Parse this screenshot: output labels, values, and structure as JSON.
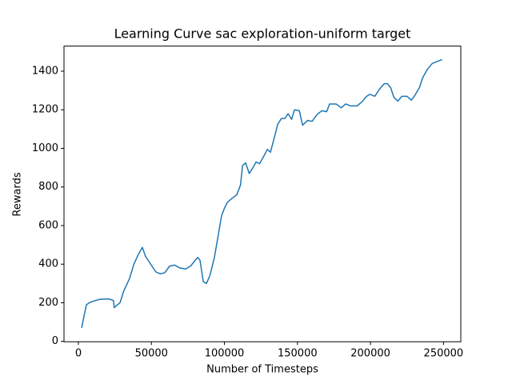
{
  "chart_data": {
    "type": "line",
    "title": "Learning Curve sac exploration-uniform target",
    "x_label": "Number of Timesteps",
    "y_label": "Rewards",
    "x": [
      2200,
      5500,
      8200,
      11000,
      14800,
      20300,
      23000,
      24100,
      24500,
      26000,
      28500,
      31000,
      35000,
      38000,
      41000,
      43800,
      46000,
      50400,
      53000,
      56000,
      59000,
      62500,
      66000,
      69600,
      73500,
      76800,
      80000,
      81700,
      83300,
      85500,
      87700,
      90000,
      93000,
      96000,
      98000,
      100000,
      102000,
      105000,
      108500,
      111000,
      112400,
      114500,
      117000,
      119500,
      121700,
      124000,
      127000,
      129400,
      131500,
      133800,
      136500,
      139000,
      141400,
      143600,
      146000,
      148000,
      151300,
      153500,
      157000,
      160000,
      163400,
      166700,
      170000,
      172000,
      176500,
      180000,
      183000,
      186400,
      190800,
      194000,
      197400,
      199500,
      203000,
      206000,
      209400,
      211600,
      213800,
      216000,
      218700,
      221500,
      225000,
      228000,
      230000,
      233500,
      235700,
      239000,
      242300,
      245600,
      249000
    ],
    "series": [
      {
        "name": "Rewards",
        "color": "#1f77b4",
        "values": [
          70,
          190,
          203,
          210,
          218,
          220,
          215,
          210,
          175,
          185,
          200,
          260,
          325,
          400,
          450,
          487,
          440,
          390,
          360,
          350,
          355,
          390,
          395,
          380,
          375,
          390,
          420,
          435,
          420,
          310,
          300,
          340,
          430,
          560,
          650,
          690,
          720,
          740,
          760,
          810,
          910,
          925,
          870,
          900,
          930,
          920,
          960,
          995,
          980,
          1045,
          1125,
          1155,
          1155,
          1180,
          1150,
          1200,
          1195,
          1120,
          1145,
          1140,
          1175,
          1195,
          1190,
          1230,
          1230,
          1210,
          1230,
          1220,
          1220,
          1240,
          1270,
          1280,
          1270,
          1305,
          1335,
          1335,
          1315,
          1265,
          1245,
          1270,
          1270,
          1250,
          1270,
          1315,
          1365,
          1410,
          1440,
          1450,
          1460
        ]
      }
    ],
    "xlim": [
      -9850,
      261850
    ],
    "xticks": [
      0,
      50000,
      100000,
      150000,
      200000,
      250000
    ],
    "ylim": [
      -2,
      1530
    ],
    "yticks": [
      0,
      200,
      400,
      600,
      800,
      1000,
      1200,
      1400
    ],
    "grid": false
  }
}
